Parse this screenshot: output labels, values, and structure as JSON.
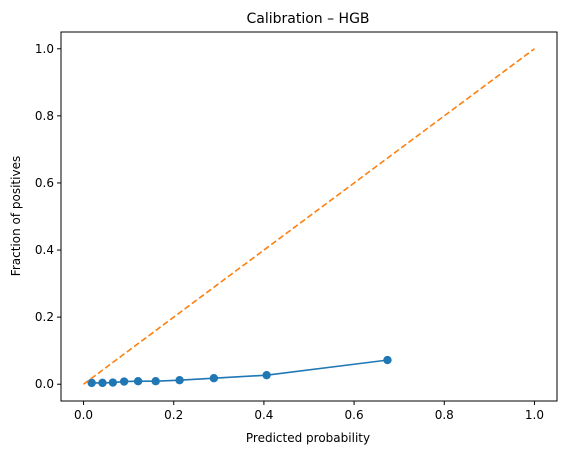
{
  "chart_data": {
    "type": "line",
    "title": "Calibration – HGB",
    "xlabel": "Predicted probability",
    "ylabel": "Fraction of positives",
    "xlim": [
      -0.05,
      1.05
    ],
    "ylim": [
      -0.05,
      1.05
    ],
    "x_ticks": [
      0.0,
      0.2,
      0.4,
      0.6,
      0.8,
      1.0
    ],
    "y_ticks": [
      0.0,
      0.2,
      0.4,
      0.6,
      0.8,
      1.0
    ],
    "x_tick_labels": [
      "0.0",
      "0.2",
      "0.4",
      "0.6",
      "0.8",
      "1.0"
    ],
    "y_tick_labels": [
      "0.0",
      "0.2",
      "0.4",
      "0.6",
      "0.8",
      "1.0"
    ],
    "grid": false,
    "series": [
      {
        "style": "solid-with-markers",
        "color": "#1f77b4",
        "x": [
          0.018,
          0.042,
          0.065,
          0.09,
          0.121,
          0.16,
          0.213,
          0.289,
          0.406,
          0.674
        ],
        "y": [
          0.004,
          0.004,
          0.005,
          0.008,
          0.009,
          0.009,
          0.012,
          0.018,
          0.027,
          0.072
        ]
      },
      {
        "style": "dashed",
        "color": "#ff7f0e",
        "x": [
          0.0,
          1.0
        ],
        "y": [
          0.0,
          1.0
        ]
      }
    ]
  }
}
